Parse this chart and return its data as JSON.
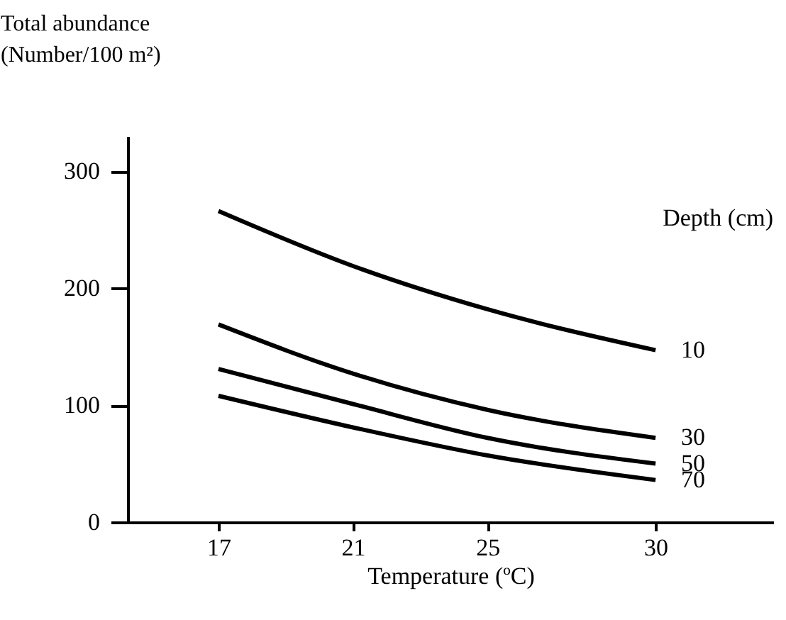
{
  "chart_data": {
    "type": "line",
    "xlabel": "Temperature (ºC)",
    "ylabel": "Total abundance\n(Number/100 m²)",
    "legend_title": "Depth (cm)",
    "x": [
      17,
      21,
      25,
      30
    ],
    "series": [
      {
        "name": "10",
        "color": "#000000",
        "values": [
          266,
          219,
          182,
          147
        ]
      },
      {
        "name": "30",
        "color": "#000000",
        "values": [
          169,
          127,
          96,
          72
        ]
      },
      {
        "name": "50",
        "color": "#000000",
        "values": [
          131,
          101,
          72,
          50
        ]
      },
      {
        "name": "70",
        "color": "#000000",
        "values": [
          108,
          81,
          57,
          36
        ]
      }
    ],
    "xlim": [
      14.3,
      33.5
    ],
    "ylim": [
      0,
      330
    ],
    "xticks": [
      17,
      21,
      25,
      30
    ],
    "yticks": [
      0,
      100,
      200,
      300
    ],
    "grid": false,
    "legend": false,
    "marker": "none",
    "line_style": "solid"
  }
}
